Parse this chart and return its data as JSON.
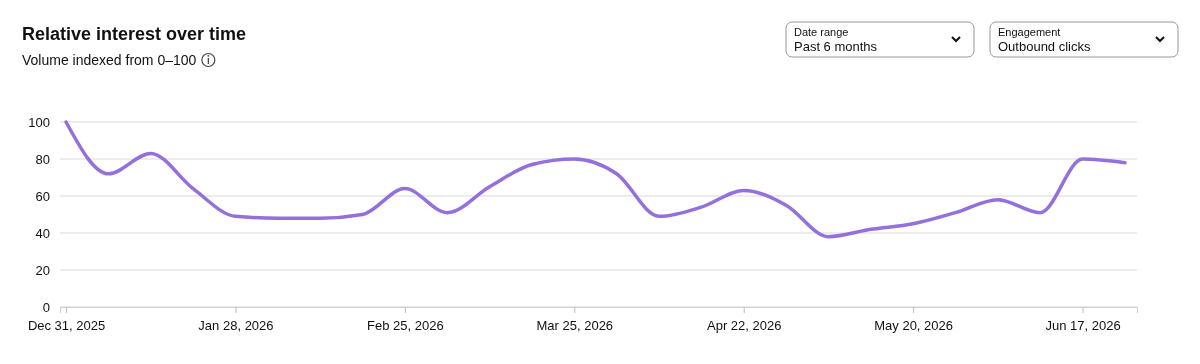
{
  "chart_data": {
    "type": "line",
    "title": "Relative interest over time",
    "subtitle": "Volume indexed from 0–100",
    "annotations": [
      "Date range",
      "Past 6 months",
      "Engagement",
      "Outbound clicks"
    ],
    "x": [
      "2025-12-31",
      "2026-01-07",
      "2026-01-14",
      "2026-01-21",
      "2026-01-28",
      "2026-02-04",
      "2026-02-11",
      "2026-02-18",
      "2026-02-25",
      "2026-03-04",
      "2026-03-11",
      "2026-03-18",
      "2026-03-25",
      "2026-04-01",
      "2026-04-08",
      "2026-04-15",
      "2026-04-22",
      "2026-04-29",
      "2026-05-06",
      "2026-05-13",
      "2026-05-20",
      "2026-05-27",
      "2026-06-03",
      "2026-06-10",
      "2026-06-17",
      "2026-06-24"
    ],
    "series": [
      {
        "color": "#9370db",
        "values": [
          100,
          72,
          83,
          64,
          49,
          48,
          48,
          50,
          64,
          51,
          65,
          77,
          80,
          72,
          49,
          54,
          63,
          55,
          38,
          42,
          45,
          51,
          58,
          51,
          80,
          78
        ]
      }
    ],
    "xlim": [
      "2025-12-30",
      "2026-06-26"
    ],
    "xticks": [
      {
        "value": "2025-12-31",
        "label": "Dec 31, 2025"
      },
      {
        "value": "2026-01-28",
        "label": "Jan 28, 2026"
      },
      {
        "value": "2026-02-25",
        "label": "Feb 25, 2026"
      },
      {
        "value": "2026-03-25",
        "label": "Mar 25, 2026"
      },
      {
        "value": "2026-04-22",
        "label": "Apr 22, 2026"
      },
      {
        "value": "2026-05-20",
        "label": "May 20, 2026"
      },
      {
        "value": "2026-06-17",
        "label": "Jun 17, 2026"
      }
    ],
    "ylim": [
      0,
      100
    ],
    "yticks": [
      0,
      20,
      40,
      60,
      80,
      100
    ],
    "grid": "y"
  }
}
